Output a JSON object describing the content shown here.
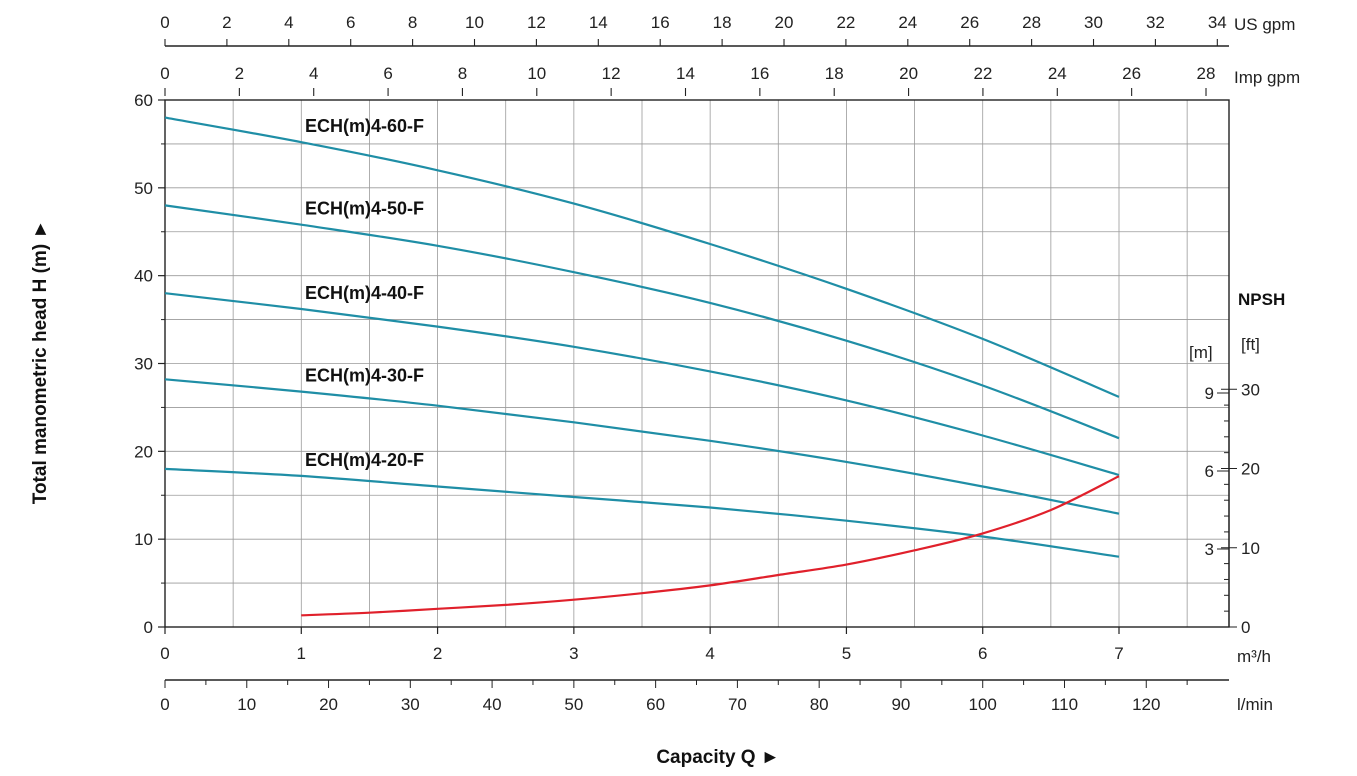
{
  "chart_data": {
    "type": "line",
    "xlabel": "Capacity Q ►",
    "ylabel": "Total manometric head H (m) ►",
    "xlim": [
      0,
      7.8
    ],
    "ylim": [
      0,
      60
    ],
    "grid": true,
    "x_axis_units": {
      "primary": "m³/h",
      "lpm": "l/min",
      "us_gpm": "US gpm",
      "imp_gpm": "Imp gpm"
    },
    "x_ticks_m3h": [
      "0",
      "1",
      "2",
      "3",
      "4",
      "5",
      "6",
      "7"
    ],
    "x_ticks_lpm": [
      "0",
      "10",
      "20",
      "30",
      "40",
      "50",
      "60",
      "70",
      "80",
      "90",
      "100",
      "110",
      "120"
    ],
    "x_ticks_usgpm": [
      "0",
      "2",
      "4",
      "6",
      "8",
      "10",
      "12",
      "14",
      "16",
      "18",
      "20",
      "22",
      "24",
      "26",
      "28",
      "30",
      "32",
      "34"
    ],
    "x_ticks_impgpm": [
      "0",
      "2",
      "4",
      "6",
      "8",
      "10",
      "12",
      "14",
      "16",
      "18",
      "20",
      "22",
      "24",
      "26",
      "28"
    ],
    "y_ticks": [
      "0",
      "10",
      "20",
      "30",
      "40",
      "50",
      "60"
    ],
    "series": [
      {
        "name": "ECH(m)4-60-F",
        "x": [
          0,
          1,
          2,
          3,
          4,
          5,
          6,
          7
        ],
        "y": [
          58,
          55.2,
          52,
          48.2,
          43.6,
          38.5,
          32.8,
          26.2
        ]
      },
      {
        "name": "ECH(m)4-50-F",
        "x": [
          0,
          1,
          2,
          3,
          4,
          5,
          6,
          7
        ],
        "y": [
          48,
          45.8,
          43.4,
          40.4,
          36.9,
          32.6,
          27.5,
          21.5
        ]
      },
      {
        "name": "ECH(m)4-40-F",
        "x": [
          0,
          1,
          2,
          3,
          4,
          5,
          6,
          7
        ],
        "y": [
          38,
          36.2,
          34.2,
          31.9,
          29.1,
          25.8,
          21.8,
          17.3
        ]
      },
      {
        "name": "ECH(m)4-30-F",
        "x": [
          0,
          1,
          2,
          3,
          4,
          5,
          6,
          7
        ],
        "y": [
          28.2,
          26.8,
          25.2,
          23.3,
          21.2,
          18.8,
          16,
          12.9
        ]
      },
      {
        "name": "ECH(m)4-20-F",
        "x": [
          0,
          1,
          2,
          3,
          4,
          5,
          6,
          7
        ],
        "y": [
          18,
          17.2,
          16,
          14.8,
          13.6,
          12.1,
          10.3,
          8
        ]
      }
    ],
    "npsh": {
      "title": "NPSH",
      "unit_m": "[m]",
      "unit_ft": "[ft]",
      "ticks_m": [
        "3",
        "6",
        "9"
      ],
      "ticks_ft": [
        "0",
        "10",
        "20",
        "30"
      ],
      "x": [
        1,
        1.5,
        2,
        2.5,
        3,
        3.5,
        4,
        4.5,
        5,
        5.5,
        6,
        6.5,
        7
      ],
      "y_m": [
        0.45,
        0.55,
        0.7,
        0.85,
        1.05,
        1.3,
        1.6,
        2,
        2.4,
        2.95,
        3.6,
        4.5,
        5.8
      ]
    },
    "colors": {
      "curves": "#1f8ea6",
      "npsh": "#e0202b",
      "grid": "#9a9a9a"
    }
  }
}
